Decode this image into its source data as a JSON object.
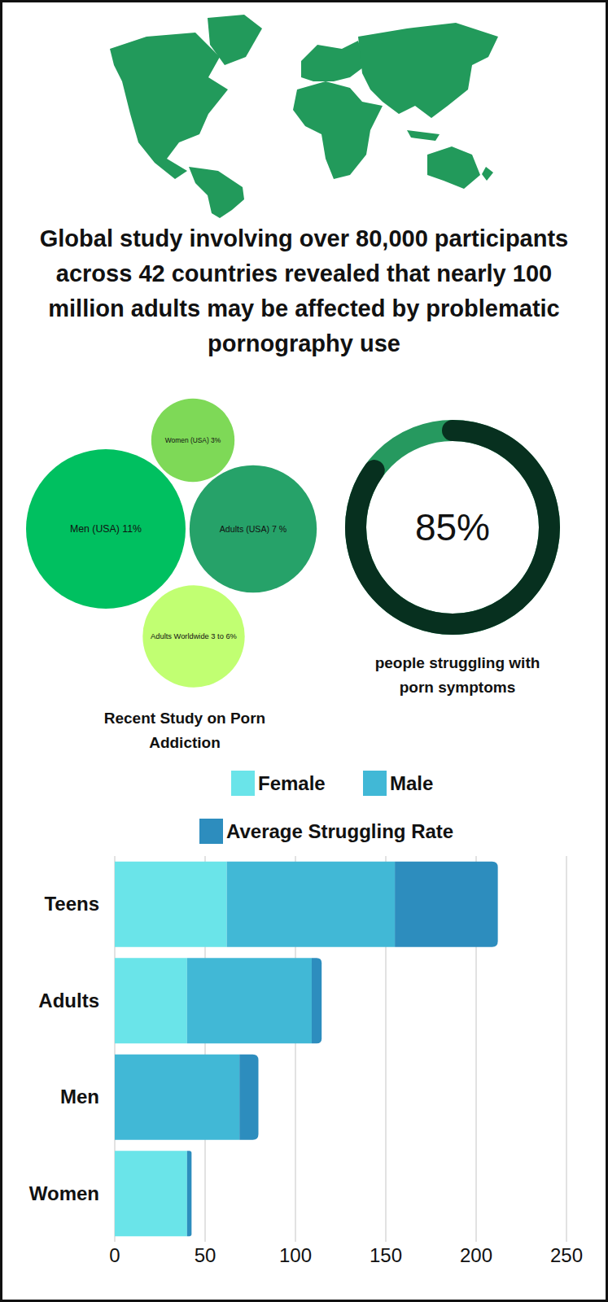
{
  "title": "Global study involving over 80,000 participants across 42 countries revealed that nearly 100 million adults may be affected by problematic pornography use",
  "chart_data": [
    {
      "type": "bubble",
      "title": "Recent Study on Porn Addiction",
      "categories": [
        "Women (USA) 3%",
        "Men (USA) 11%",
        "Adults (USA) 7 %",
        "Adults Worldwide 3 to 6%"
      ],
      "values": [
        3,
        11,
        7,
        4.5
      ],
      "colors": [
        "#7ed957",
        "#00c060",
        "#26a269",
        "#c1ff72"
      ],
      "tick_labels": false
    },
    {
      "type": "donut",
      "subtitle": "people struggling with porn symptoms",
      "values": [
        85
      ],
      "value_labels": [
        "85%"
      ],
      "color": "#07301f",
      "data_labels": true
    },
    {
      "type": "bar",
      "orientation": "horizontal",
      "stacked": true,
      "categories": [
        "Teens",
        "Adults",
        "Men",
        "Women"
      ],
      "series": [
        {
          "name": "Female",
          "color": "#6ae4e9",
          "values": [
            62,
            40,
            0,
            40
          ]
        },
        {
          "name": "Male",
          "color": "#41b8d6",
          "values": [
            93,
            69,
            69,
            0
          ]
        },
        {
          "name": "Average Struggling Rate",
          "color": "#2d8dbe",
          "values": [
            57,
            5.5,
            10.5,
            2.5
          ]
        }
      ],
      "xlim": [
        0,
        250
      ],
      "xticks": [
        0,
        50,
        100,
        150,
        200,
        250
      ],
      "grid": true,
      "legend": "top"
    }
  ]
}
